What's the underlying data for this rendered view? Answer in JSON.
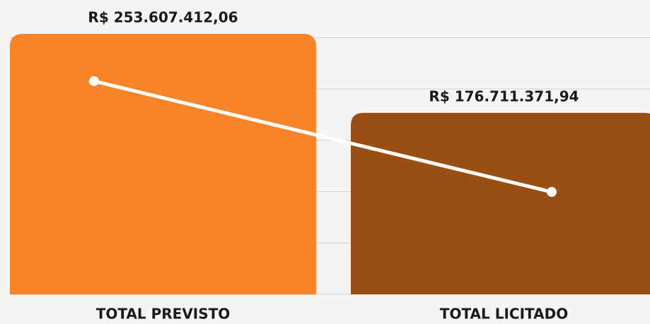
{
  "chart_data": {
    "type": "bar",
    "categories": [
      "TOTAL PREVISTO",
      "TOTAL LICITADO"
    ],
    "values": [
      253607412.06,
      176711371.94
    ],
    "value_labels": [
      "R$ 253.607.412,06",
      "R$ 176.711.371,94"
    ],
    "colors": [
      "#f8842a",
      "#9a4f12"
    ],
    "line": {
      "color": "#ffffff",
      "values": [
        207600000,
        99700000
      ]
    },
    "ylim": [
      0,
      260000000
    ],
    "yticks": [
      0,
      50000000,
      100000000,
      150000000,
      200000000,
      250000000
    ],
    "grid": true
  }
}
